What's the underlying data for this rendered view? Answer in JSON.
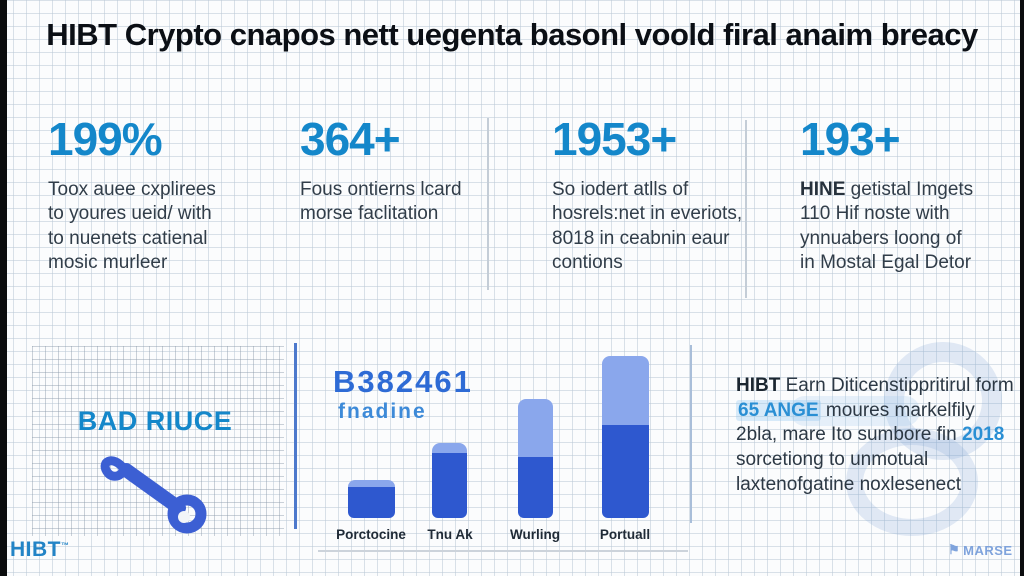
{
  "header": {
    "title": "HIBT Crypto cnapos nett uegenta basonl voold firal anaim breacy"
  },
  "stats": [
    {
      "value": "199%",
      "lines": [
        "Toox auee cxplirees",
        "to youres ueid/ with",
        "to nuenets catienal",
        "mosic murleer"
      ]
    },
    {
      "value": "364+",
      "lines": [
        "Fous ontierns lcard",
        "morse faclitation"
      ]
    },
    {
      "value": "1953+",
      "lines": [
        "So iodert atlls of",
        "hosrels:net in everiots,",
        "8018 in ceabnin eaur",
        "contions"
      ]
    },
    {
      "value": "193+",
      "lead": "HINE",
      "lead_rest": " getistal Imgets",
      "lines": [
        "110 Hif noste with",
        "ynnuabers loong of",
        "in Mostal Egal Detor"
      ]
    }
  ],
  "badge": {
    "label": "BAD RIUCE",
    "icon": "key-icon"
  },
  "chart_data": {
    "type": "bar",
    "stacked": true,
    "title": "B382461",
    "subtitle": "fnadine",
    "categories": [
      "Porctocine",
      "Tnu Ak",
      "Wurling",
      "Portuall"
    ],
    "series": [
      {
        "name": "dark-bottom",
        "color": "#2e58cf",
        "values": [
          31,
          65,
          61,
          93
        ]
      },
      {
        "name": "light-top",
        "color": "#8aa7ec",
        "values": [
          7,
          10,
          58,
          69
        ]
      }
    ],
    "value_unit": "relative height (px), no axis shown",
    "axes": "none",
    "legend": "none",
    "xlabel": "",
    "ylabel": ""
  },
  "note": {
    "segments": [
      "HIBT",
      " Earn Diticenstippritirul form ",
      "65 ANGE",
      " moures markelfily 2bla, mare Ito sumbore fin ",
      "2018",
      " sorcetiong to unmotual laxtenofgatine noxlesenect"
    ]
  },
  "footer": {
    "brand": "HIBT",
    "brand_mark": "™",
    "partner": "MARSE"
  },
  "colors": {
    "accent_blue": "#1487ca",
    "chart_dark": "#2e58cf",
    "chart_light": "#8aa7ec",
    "key_icon": "#3c5fd3",
    "title_text": "#0b0f15",
    "body_text": "#313d49",
    "edge_bars": "#0b0c0e"
  }
}
